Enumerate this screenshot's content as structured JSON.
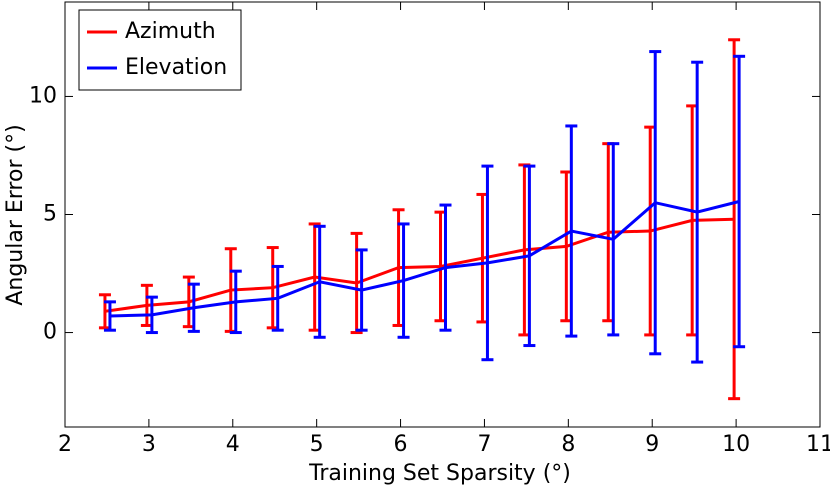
{
  "chart_data": {
    "type": "errorbar-line",
    "xlabel": "Training Set Sparsity (°)",
    "ylabel": "Angular Error (°)",
    "x": [
      2.5,
      3,
      3.5,
      4,
      4.5,
      5,
      5.5,
      6,
      6.5,
      7,
      7.5,
      8,
      8.5,
      9,
      9.5,
      10
    ],
    "series": [
      {
        "name": "Azimuth",
        "color": "#ff0000",
        "values": [
          0.9,
          1.15,
          1.3,
          1.8,
          1.9,
          2.35,
          2.1,
          2.75,
          2.8,
          3.15,
          3.5,
          3.65,
          4.25,
          4.3,
          4.75,
          4.8
        ],
        "errors": [
          0.7,
          0.85,
          1.05,
          1.75,
          1.7,
          2.25,
          2.1,
          2.45,
          2.3,
          2.7,
          3.6,
          3.15,
          3.75,
          4.4,
          4.85,
          7.6
        ]
      },
      {
        "name": "Elevation",
        "color": "#0000ff",
        "values": [
          0.7,
          0.75,
          1.05,
          1.3,
          1.45,
          2.15,
          1.8,
          2.2,
          2.75,
          2.95,
          3.25,
          4.3,
          3.95,
          5.5,
          5.1,
          5.55
        ],
        "errors": [
          0.6,
          0.75,
          1.0,
          1.3,
          1.35,
          2.35,
          1.7,
          2.4,
          2.65,
          4.1,
          3.8,
          4.45,
          4.05,
          6.4,
          6.35,
          6.15
        ]
      }
    ],
    "xlim": [
      2,
      11
    ],
    "xticks": [
      2,
      3,
      4,
      5,
      6,
      7,
      8,
      9,
      10,
      11
    ],
    "ylim": [
      -4,
      14
    ],
    "yticks": [
      0,
      5,
      10
    ],
    "legend": "upper-left"
  }
}
